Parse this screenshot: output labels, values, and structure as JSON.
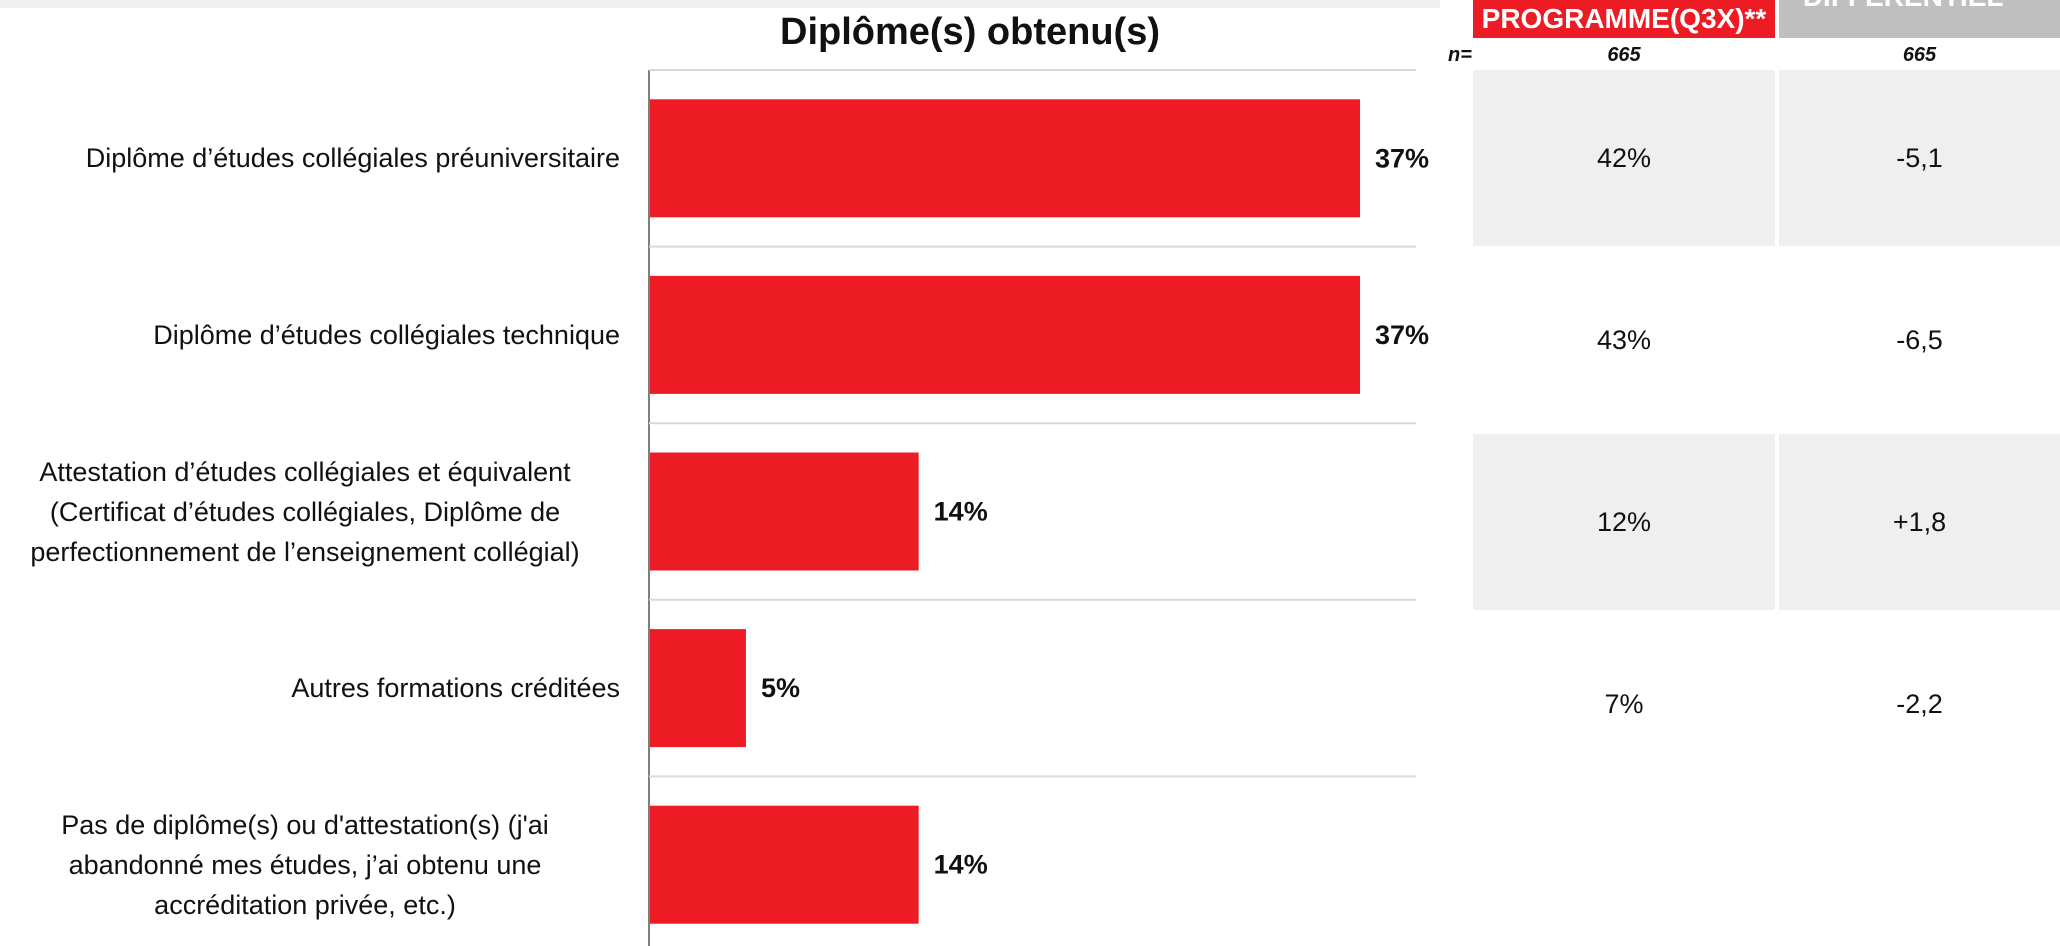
{
  "chart_data": {
    "type": "bar",
    "orientation": "horizontal",
    "title": "Diplôme(s) obtenu(s)",
    "categories": [
      "Diplôme d’études collégiales préuniversitaire",
      "Diplôme d’études collégiales technique",
      "Attestation d’études collégiales et équivalent\n(Certificat d’études collégiales, Diplôme de\nperfectionnement de l’enseignement collégial)",
      "Autres formations créditées",
      "Pas de diplôme(s) ou d'attestation(s) (j'ai\nabandonné mes études, j’ai obtenu une\naccréditation privée, etc.)"
    ],
    "values": [
      37,
      37,
      14,
      5,
      14
    ],
    "value_labels": [
      "37%",
      "37%",
      "14%",
      "5%",
      "14%"
    ],
    "xlim": [
      0,
      40
    ],
    "bar_color": "#ED1C24"
  },
  "table": {
    "n_label": "n=",
    "columns": [
      {
        "header": "PROGRAMME(Q3X)**",
        "n": "665",
        "color": "#ED1C24",
        "values": [
          "42%",
          "43%",
          "12%",
          "7%"
        ]
      },
      {
        "header": "DIFFÉRENTIEL***",
        "n": "665",
        "color": "#BFBFBF",
        "values": [
          "-5,1",
          "-6,5",
          "+1,8",
          "-2,2"
        ]
      }
    ]
  }
}
